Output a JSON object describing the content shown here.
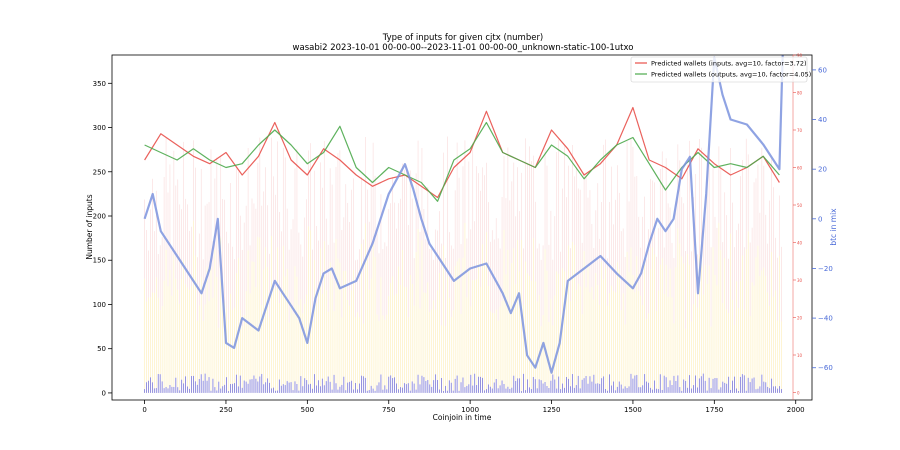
{
  "chart_data": {
    "type": "line",
    "title": "Type of inputs for given cjtx (number)",
    "subtitle": "wasabi2 2023-10-01 00-00-00--2023-11-01 00-00-00_unknown-static-100-1utxo",
    "xlabel": "Coinjoin in time",
    "ylabel": "Number of inputs",
    "y2label": "btc in mix",
    "xlim": [
      -100,
      2050
    ],
    "ylim": [
      -8,
      382
    ],
    "y2lim": [
      -73,
      66
    ],
    "y3lim": [
      -2,
      90
    ],
    "x_ticks": [
      0,
      250,
      500,
      750,
      1000,
      1250,
      1500,
      1750,
      2000
    ],
    "y_ticks": [
      0,
      50,
      100,
      150,
      200,
      250,
      300,
      350
    ],
    "y2_ticks": [
      -60,
      -40,
      -20,
      0,
      20,
      40,
      60
    ],
    "y3_ticks": [
      0,
      10,
      20,
      30,
      40,
      50,
      60,
      70,
      80,
      90
    ],
    "grid": false,
    "legend_position": "top-right",
    "series": [
      {
        "name": "Predicted wallets (inputs, avg=10, factor=3.72)",
        "color": "#e8504a",
        "axis": "right-inner",
        "x": [
          0,
          50,
          100,
          150,
          200,
          250,
          300,
          350,
          400,
          450,
          500,
          550,
          600,
          650,
          700,
          750,
          800,
          850,
          900,
          950,
          1000,
          1050,
          1100,
          1150,
          1200,
          1250,
          1300,
          1350,
          1400,
          1450,
          1500,
          1550,
          1600,
          1650,
          1700,
          1750,
          1800,
          1850,
          1900,
          1950
        ],
        "values": [
          62,
          69,
          66,
          63,
          61,
          64,
          58,
          63,
          72,
          62,
          58,
          65,
          62,
          58,
          55,
          57,
          58,
          55,
          52,
          60,
          64,
          75,
          64,
          62,
          60,
          70,
          65,
          58,
          61,
          66,
          76,
          62,
          60,
          57,
          65,
          61,
          58,
          60,
          63,
          56
        ]
      },
      {
        "name": "Predicted wallets (outputs, avg=10, factor=4.05)",
        "color": "#4daa4d",
        "axis": "right-inner",
        "x": [
          0,
          50,
          100,
          150,
          200,
          250,
          300,
          350,
          400,
          450,
          500,
          550,
          600,
          650,
          700,
          750,
          800,
          850,
          900,
          950,
          1000,
          1050,
          1100,
          1150,
          1200,
          1250,
          1300,
          1350,
          1400,
          1450,
          1500,
          1550,
          1600,
          1650,
          1700,
          1750,
          1800,
          1850,
          1900,
          1950
        ],
        "values": [
          66,
          64,
          62,
          65,
          62,
          60,
          61,
          66,
          70,
          66,
          61,
          64,
          71,
          60,
          56,
          60,
          58,
          56,
          51,
          62,
          65,
          72,
          64,
          62,
          60,
          66,
          63,
          57,
          62,
          66,
          68,
          61,
          54,
          60,
          64,
          60,
          61,
          60,
          63,
          58
        ]
      },
      {
        "name": "btc in mix",
        "color": "#7b93de",
        "axis": "right",
        "x": [
          0,
          25,
          50,
          100,
          150,
          175,
          200,
          225,
          250,
          275,
          300,
          350,
          400,
          425,
          450,
          475,
          500,
          525,
          550,
          575,
          600,
          650,
          700,
          750,
          800,
          825,
          850,
          875,
          900,
          950,
          1000,
          1050,
          1100,
          1125,
          1150,
          1175,
          1200,
          1225,
          1250,
          1275,
          1300,
          1350,
          1400,
          1450,
          1500,
          1525,
          1550,
          1575,
          1600,
          1625,
          1650,
          1675,
          1700,
          1725,
          1750,
          1775,
          1800,
          1850,
          1900,
          1950,
          1960
        ],
        "values": [
          0,
          10,
          -5,
          -15,
          -25,
          -30,
          -20,
          0,
          -50,
          -52,
          -40,
          -45,
          -25,
          -30,
          -35,
          -40,
          -50,
          -32,
          -22,
          -20,
          -28,
          -25,
          -10,
          10,
          22,
          12,
          0,
          -10,
          -15,
          -25,
          -20,
          -18,
          -30,
          -38,
          -30,
          -55,
          -60,
          -50,
          -62,
          -50,
          -25,
          -20,
          -15,
          -22,
          -28,
          -22,
          -10,
          0,
          -5,
          0,
          20,
          25,
          -30,
          10,
          65,
          50,
          40,
          38,
          30,
          20,
          66
        ]
      }
    ],
    "bars_inputs": {
      "color_high": "#f4bcbc",
      "color_low": "#fde79a",
      "range_values": [
        150,
        290
      ],
      "note_visible": false
    },
    "bars_bottom": {
      "color": "#5a5ae0",
      "range_values": [
        2,
        22
      ]
    },
    "colors": {
      "left_axis": "#000000",
      "right_axis": "#4a6ad8",
      "right_inner_axis": "#e8504a"
    }
  }
}
